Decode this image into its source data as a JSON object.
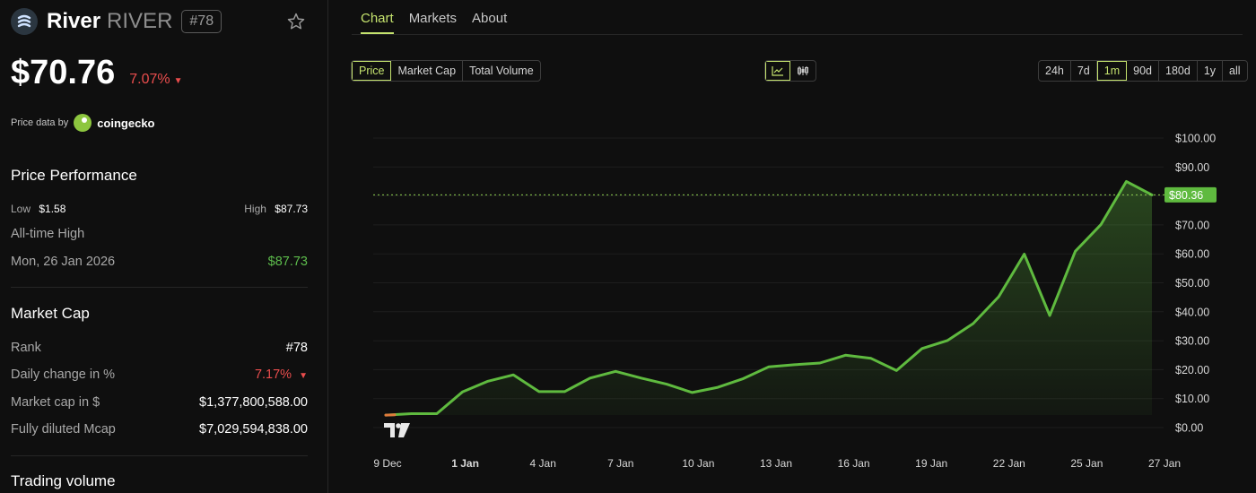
{
  "coin": {
    "name": "River",
    "symbol": "RIVER",
    "rank_chip": "#78",
    "price": "$70.76",
    "price_change": "7.07%"
  },
  "provider": {
    "label": "Price data by",
    "name": "coingecko"
  },
  "performance": {
    "title": "Price Performance",
    "low_label": "Low",
    "low_value": "$1.58",
    "high_label": "High",
    "high_value": "$87.73",
    "ath_label": "All-time High",
    "ath_date": "Mon, 26 Jan 2026",
    "ath_value": "$87.73"
  },
  "market_cap": {
    "title": "Market Cap",
    "rank_label": "Rank",
    "rank_value": "#78",
    "daily_label": "Daily change in %",
    "daily_value": "7.17%",
    "mcap_label": "Market cap in $",
    "mcap_value": "$1,377,800,588.00",
    "fdv_label": "Fully diluted Mcap",
    "fdv_value": "$7,029,594,838.00"
  },
  "trading_volume": {
    "title": "Trading volume"
  },
  "tabs": [
    "Chart",
    "Markets",
    "About"
  ],
  "active_tab": 0,
  "metric_options": [
    "Price",
    "Market Cap",
    "Total Volume"
  ],
  "active_metric": 0,
  "range_options": [
    "24h",
    "7d",
    "1m",
    "90d",
    "180d",
    "1y",
    "all"
  ],
  "active_range": 2,
  "colors": {
    "accent": "#c5e36e",
    "line": "#5fba3f",
    "down": "#ea4d4d",
    "up": "#5dbd4c"
  },
  "icons": {
    "line_chart": "line-chart-icon",
    "candle_chart": "candlestick-icon",
    "watermark": "tradingview-logo-icon"
  },
  "chart_data": {
    "type": "area",
    "y_ticks": [
      "$100.00",
      "$90.00",
      "$80.00",
      "$70.00",
      "$60.00",
      "$50.00",
      "$40.00",
      "$30.00",
      "$20.00",
      "$10.00",
      "$0.00"
    ],
    "ylim": [
      0,
      100
    ],
    "x_ticks": [
      "9 Dec",
      "1 Jan",
      "4 Jan",
      "7 Jan",
      "10 Jan",
      "13 Jan",
      "16 Jan",
      "19 Jan",
      "22 Jan",
      "25 Jan",
      "27 Jan"
    ],
    "last_price_label": "$80.36",
    "last_price": 80.36,
    "series": [
      {
        "values": [
          4.3,
          4.8,
          4.8,
          12.3,
          16.0,
          18.2,
          12.4,
          12.4,
          17.1,
          19.4,
          17.1,
          15.0,
          12.1,
          13.9,
          16.9,
          21.0,
          21.7,
          22.3,
          25.0,
          23.9,
          19.7,
          27.3,
          30.1,
          35.9,
          45.2,
          59.9,
          38.7,
          60.9,
          70.1,
          85.0,
          80.36
        ]
      }
    ]
  }
}
